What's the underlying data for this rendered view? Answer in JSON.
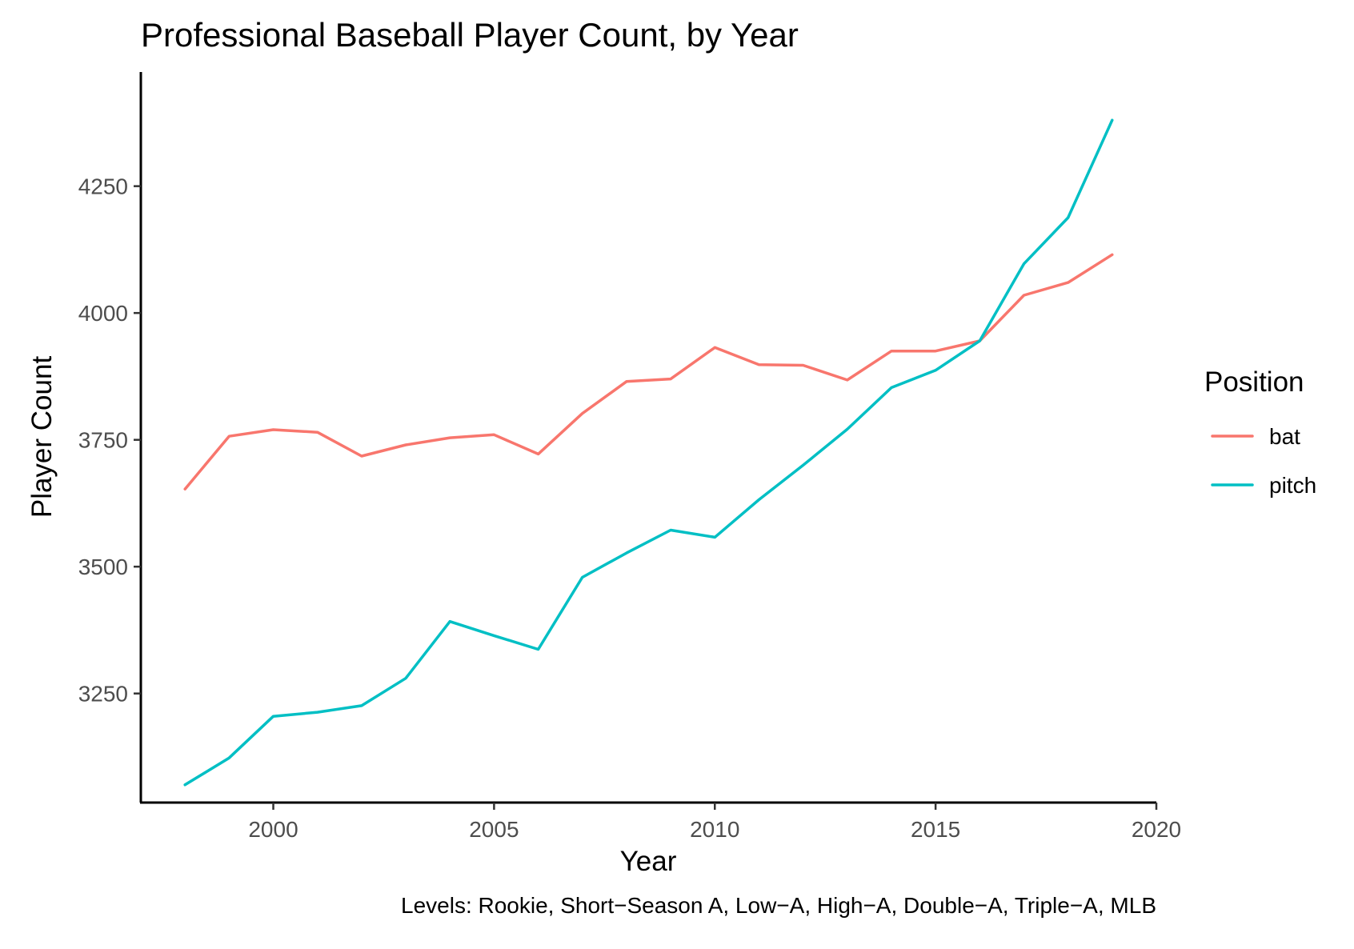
{
  "chart_data": {
    "type": "line",
    "title": "Professional Baseball Player Count, by Year",
    "xlabel": "Year",
    "ylabel": "Player Count",
    "caption": "Levels: Rookie, Short−Season A, Low−A, High−A, Double−A, Triple−A, MLB",
    "xlim": [
      1997,
      2020
    ],
    "ylim": [
      3035,
      4475
    ],
    "x_ticks": [
      2000,
      2005,
      2010,
      2015,
      2020
    ],
    "y_ticks": [
      3250,
      3500,
      3750,
      4000,
      4250
    ],
    "grid": false,
    "legend": {
      "title": "Position",
      "position": "right"
    },
    "x": [
      1998,
      1999,
      2000,
      2001,
      2002,
      2003,
      2004,
      2005,
      2006,
      2007,
      2008,
      2009,
      2010,
      2011,
      2012,
      2013,
      2014,
      2015,
      2016,
      2017,
      2018,
      2019
    ],
    "series": [
      {
        "name": "bat",
        "color": "#F8766D",
        "values": [
          3653,
          3757,
          3770,
          3765,
          3718,
          3740,
          3754,
          3760,
          3722,
          3802,
          3865,
          3870,
          3932,
          3898,
          3897,
          3868,
          3925,
          3925,
          3945,
          4035,
          4060,
          4115
        ]
      },
      {
        "name": "pitch",
        "color": "#00BFC4",
        "values": [
          3070,
          3123,
          3205,
          3213,
          3226,
          3280,
          3392,
          3364,
          3337,
          3479,
          3527,
          3572,
          3558,
          3632,
          3700,
          3771,
          3853,
          3887,
          3945,
          4097,
          4188,
          4380
        ]
      }
    ]
  }
}
